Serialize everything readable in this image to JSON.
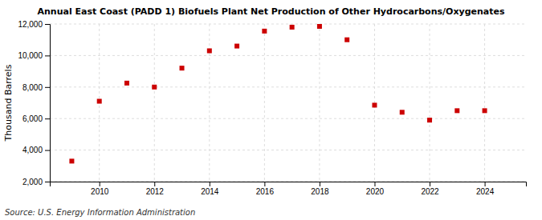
{
  "chart_data": {
    "type": "scatter",
    "title": "Annual East Coast (PADD 1) Biofuels Plant Net Production of Other Hydrocarbons/Oxygenates",
    "ylabel": "Thousand Barrels",
    "source": "Source: U.S. Energy Information Administration",
    "x": [
      2009,
      2010,
      2011,
      2012,
      2013,
      2014,
      2015,
      2016,
      2017,
      2018,
      2019,
      2020,
      2021,
      2022,
      2023,
      2024
    ],
    "values": [
      3300,
      7100,
      8250,
      8000,
      9200,
      10300,
      10600,
      11550,
      11800,
      11850,
      11000,
      6850,
      6400,
      5900,
      6500,
      6500
    ],
    "color": "#cc0000",
    "marker": "square",
    "xlim": [
      2008.2,
      2025.5
    ],
    "xticks": [
      2010,
      2012,
      2014,
      2016,
      2018,
      2020,
      2022,
      2024
    ],
    "ylim": [
      2000,
      12000
    ],
    "yticks": [
      {
        "value": 2000,
        "label": "2,000"
      },
      {
        "value": 4000,
        "label": "4,000"
      },
      {
        "value": 6000,
        "label": "6,000"
      },
      {
        "value": 8000,
        "label": "8,000"
      },
      {
        "value": 10000,
        "label": "10,000"
      },
      {
        "value": 12000,
        "label": "12,000"
      }
    ],
    "grid": true
  }
}
